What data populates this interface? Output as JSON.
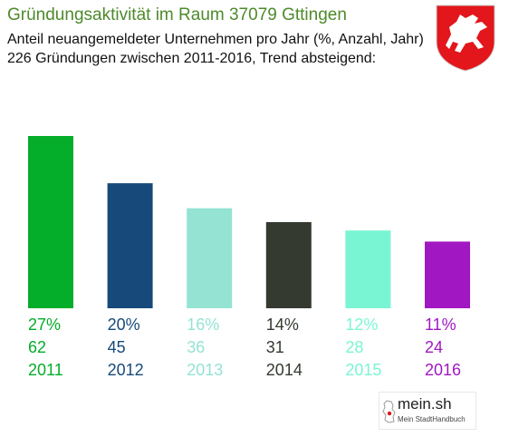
{
  "chart_data": {
    "type": "bar",
    "title": "Gründungsaktivität im Raum 37079 Gttingen",
    "subtitle_lines": [
      "Anteil neuangemeldeter Unternehmen pro Jahr (%, Anzahl, Jahr)",
      "226 Gründungen zwischen 2011-2016, Trend absteigend:"
    ],
    "categories": [
      "2011",
      "2012",
      "2013",
      "2014",
      "2015",
      "2016"
    ],
    "values": [
      62,
      45,
      36,
      31,
      28,
      24
    ],
    "percent_labels": [
      "27%",
      "20%",
      "16%",
      "14%",
      "12%",
      "11%"
    ],
    "colors": [
      "#04ad2a",
      "#174a7a",
      "#94e3d3",
      "#343a30",
      "#7af5d3",
      "#a118c2"
    ],
    "title_color": "#4e8a2a"
  },
  "branding": {
    "logo_text": "mein.sh",
    "logo_subtext": "Mein StadtHandbuch"
  },
  "icons": {
    "crest": "lower-saxony-horse-crest-icon",
    "logo": "germany-map-logo-icon"
  }
}
